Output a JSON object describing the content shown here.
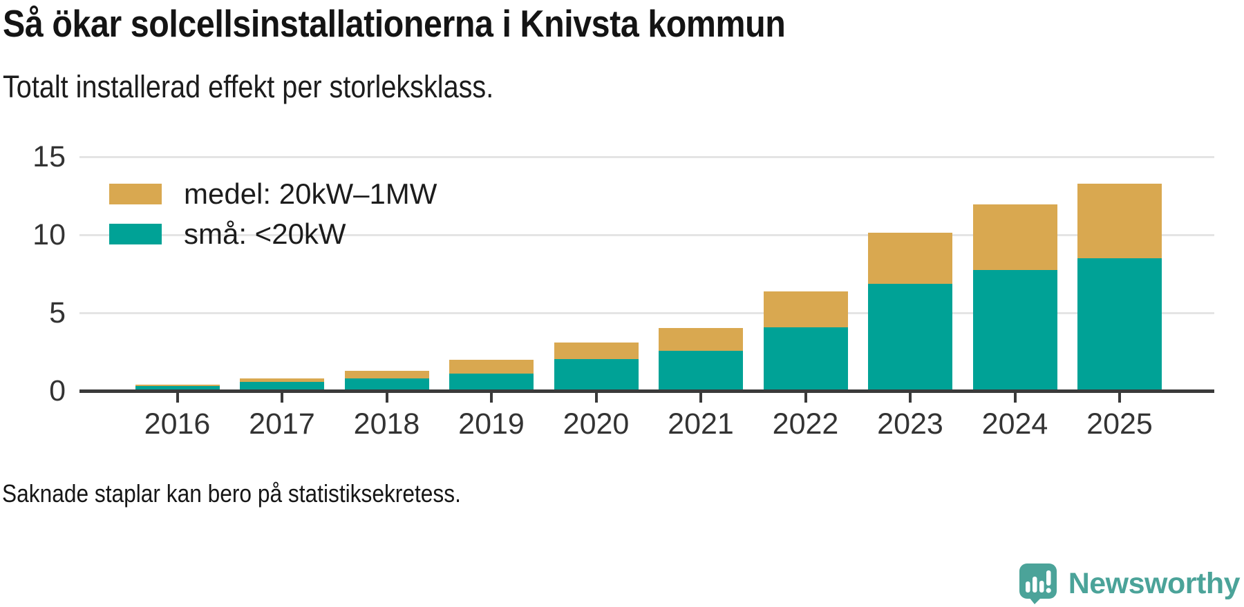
{
  "header": {
    "title": "Så ökar solcellsinstallationerna i Knivsta kommun",
    "subtitle": "Totalt installerad effekt per storleksklass."
  },
  "chart_data": {
    "type": "bar",
    "stacked": true,
    "title": "Så ökar solcellsinstallationerna i Knivsta kommun",
    "subtitle": "Totalt installerad effekt per storleksklass.",
    "categories": [
      "2016",
      "2017",
      "2018",
      "2019",
      "2020",
      "2021",
      "2022",
      "2023",
      "2024",
      "2025"
    ],
    "series": [
      {
        "name": "små: <20kW",
        "stack_order": "bottom",
        "color": "#00a296",
        "values": [
          0.2,
          0.5,
          0.7,
          1.0,
          1.95,
          2.5,
          4.0,
          6.75,
          7.65,
          8.4
        ]
      },
      {
        "name": "medel: 20kW–1MW",
        "stack_order": "top",
        "color": "#d9a850",
        "values": [
          0.1,
          0.2,
          0.5,
          0.9,
          1.05,
          1.45,
          2.3,
          3.3,
          4.2,
          4.8
        ]
      }
    ],
    "stack_totals": [
      0.3,
      0.7,
      1.2,
      1.9,
      3.0,
      3.95,
      6.3,
      10.05,
      11.85,
      13.2
    ],
    "xlabel": "",
    "ylabel": "",
    "y_ticks": [
      0,
      5,
      10,
      15
    ],
    "ylim": [
      0,
      16.7
    ],
    "grid": "horizontal",
    "legend_position": "inside-top-left"
  },
  "legend": {
    "items": [
      {
        "label": "medel: 20kW–1MW",
        "color": "#d9a850"
      },
      {
        "label": "små: <20kW",
        "color": "#00a296"
      }
    ]
  },
  "footer": {
    "note": "Saknade staplar kan bero på statistiksekretess."
  },
  "branding": {
    "logo_text": "Newsworthy",
    "logo_icon": "bar-chart-speech-bubble",
    "logo_color": "#4ba399"
  },
  "colors": {
    "bar_small": "#00a296",
    "bar_medium": "#d9a850",
    "axis": "#3a3a3a",
    "gridline": "#e4e4e4",
    "text": "#1a1a1a"
  }
}
